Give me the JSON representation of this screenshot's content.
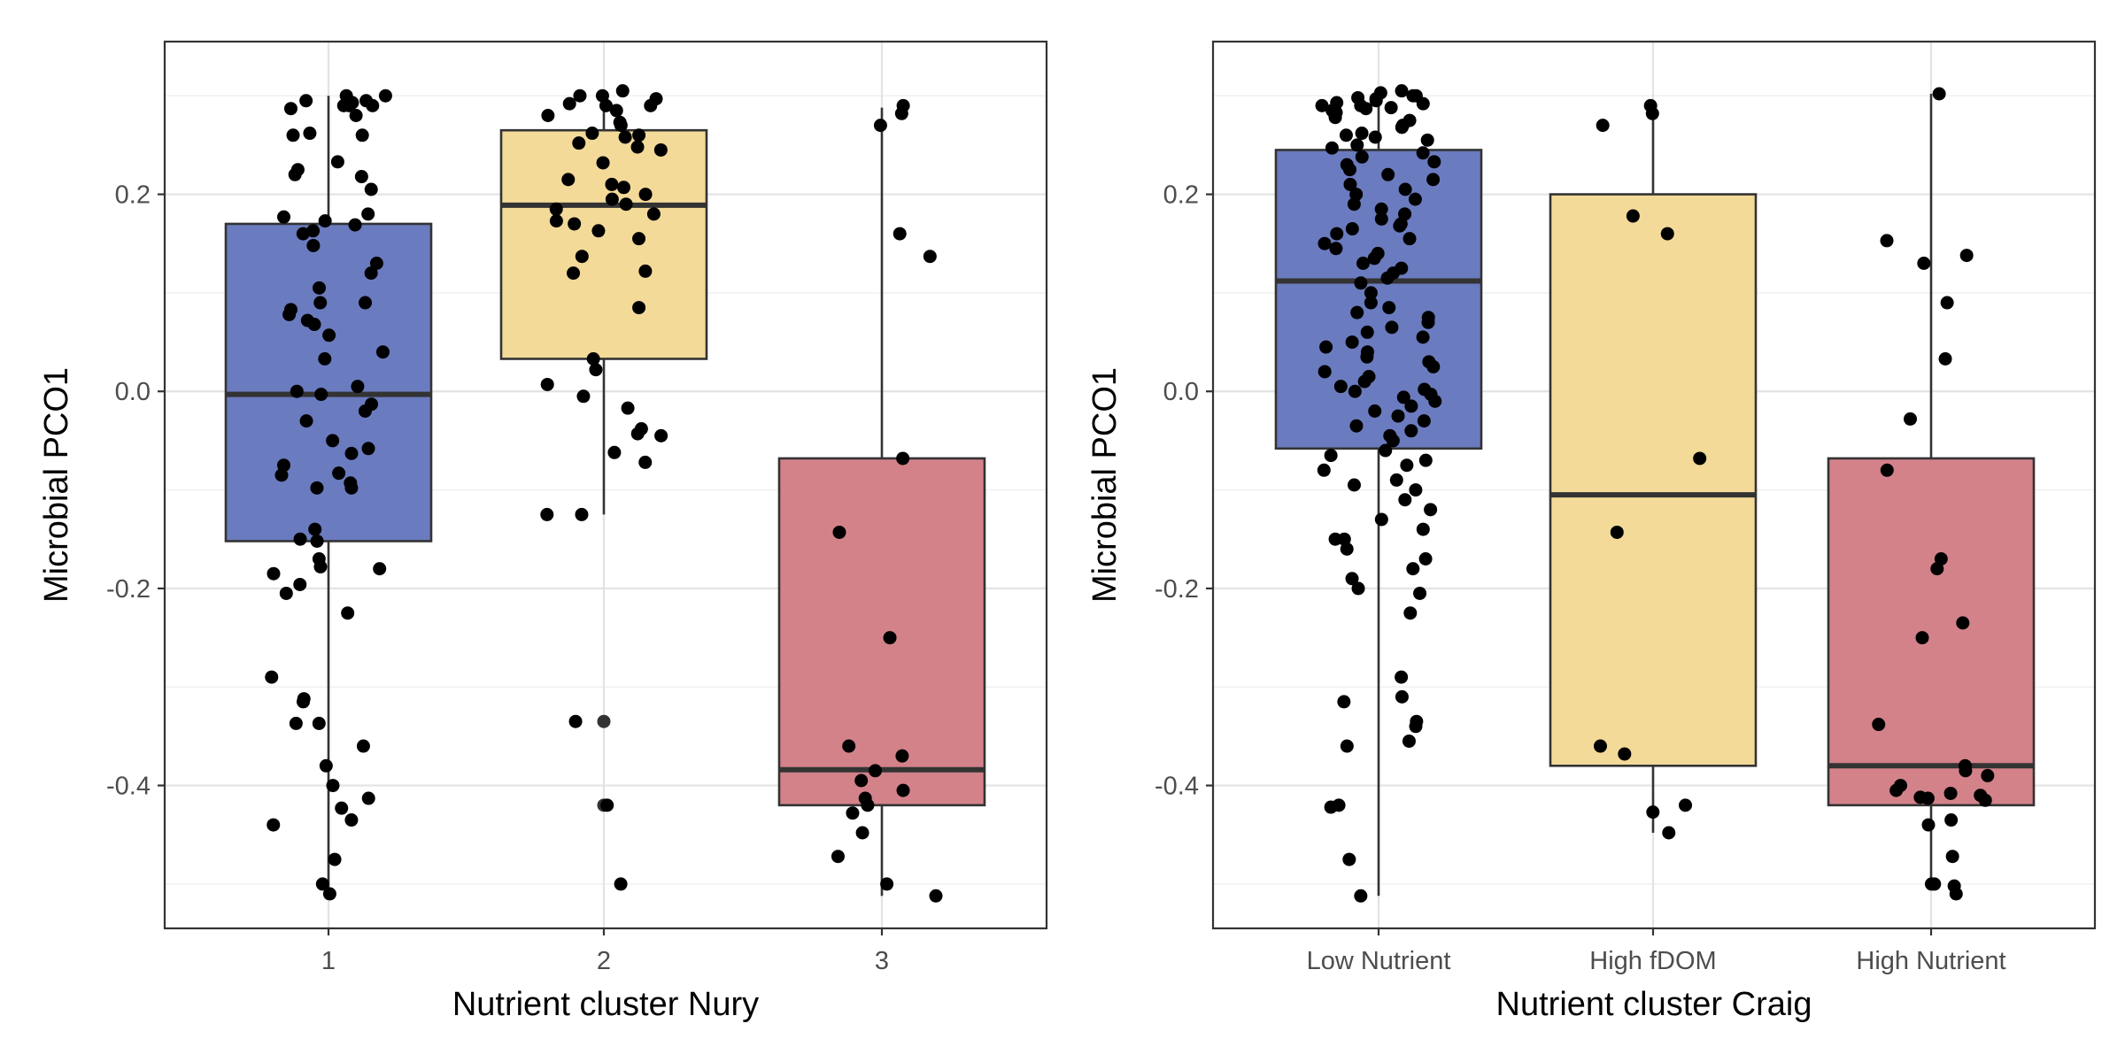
{
  "chart_data": [
    {
      "type": "boxplot",
      "xlabel": "Nutrient cluster Nury",
      "ylabel": "Microbial PCO1",
      "categories": [
        "1",
        "2",
        "3"
      ],
      "colors": [
        "#6B7BBF",
        "#F3DA99",
        "#D3828A"
      ],
      "ylim": [
        -0.545,
        0.355
      ],
      "yticks": [
        "0.2",
        "0.0",
        "-0.2",
        "-0.4"
      ],
      "ytick_values": [
        0.2,
        0.0,
        -0.2,
        -0.4
      ],
      "grid": true,
      "boxes": [
        {
          "category": "1",
          "whisker_low": -0.51,
          "q1": -0.152,
          "median": -0.003,
          "q3": 0.17,
          "whisker_high": 0.3
        },
        {
          "category": "2",
          "whisker_low": -0.125,
          "q1": 0.033,
          "median": 0.189,
          "q3": 0.265,
          "whisker_high": 0.3
        },
        {
          "category": "3",
          "whisker_low": -0.512,
          "q1": -0.42,
          "median": -0.384,
          "q3": -0.068,
          "whisker_high": 0.288
        }
      ],
      "outliers": [
        {
          "category": "2",
          "values": [
            -0.335,
            -0.42
          ]
        }
      ],
      "points": [
        {
          "category": "1",
          "values": [
            0.3,
            0.295,
            0.29,
            0.3,
            0.29,
            0.295,
            0.287,
            0.29,
            0.293,
            0.295,
            0.28,
            0.262,
            0.26,
            0.26,
            0.233,
            0.225,
            0.22,
            0.218,
            0.205,
            0.18,
            0.177,
            0.173,
            0.169,
            0.163,
            0.16,
            0.148,
            0.13,
            0.12,
            0.105,
            0.09,
            0.09,
            0.083,
            0.078,
            0.072,
            0.068,
            0.057,
            0.04,
            0.033,
            0.005,
            0.0,
            -0.003,
            -0.013,
            -0.02,
            -0.03,
            -0.05,
            -0.058,
            -0.063,
            -0.075,
            -0.083,
            -0.085,
            -0.093,
            -0.098,
            -0.098,
            -0.15,
            -0.14,
            -0.152,
            -0.17,
            -0.18,
            -0.178,
            -0.185,
            -0.196,
            -0.205,
            -0.225,
            -0.29,
            -0.312,
            -0.315,
            -0.337,
            -0.337,
            -0.36,
            -0.38,
            -0.4,
            -0.413,
            -0.423,
            -0.435,
            -0.44,
            -0.475,
            -0.5,
            -0.51
          ]
        },
        {
          "category": "2",
          "values": [
            0.305,
            0.3,
            0.3,
            0.297,
            0.292,
            0.29,
            0.29,
            0.285,
            0.28,
            0.273,
            0.27,
            0.262,
            0.26,
            0.258,
            0.252,
            0.248,
            0.245,
            0.232,
            0.215,
            0.21,
            0.207,
            0.2,
            0.195,
            0.19,
            0.185,
            0.18,
            0.173,
            0.17,
            0.163,
            0.155,
            0.137,
            0.122,
            0.12,
            0.085,
            0.033,
            0.022,
            0.007,
            -0.005,
            -0.017,
            -0.038,
            -0.043,
            -0.045,
            -0.062,
            -0.072,
            -0.125,
            -0.125,
            -0.335,
            -0.42,
            -0.5
          ]
        },
        {
          "category": "3",
          "values": [
            0.29,
            0.282,
            0.27,
            0.16,
            0.137,
            -0.068,
            -0.143,
            -0.25,
            -0.36,
            -0.37,
            -0.385,
            -0.395,
            -0.405,
            -0.413,
            -0.42,
            -0.428,
            -0.448,
            -0.472,
            -0.5,
            -0.512
          ]
        }
      ]
    },
    {
      "type": "boxplot",
      "xlabel": "Nutrient cluster Craig",
      "ylabel": "Microbial PCO1",
      "categories": [
        "Low Nutrient",
        "High fDOM",
        "High Nutrient"
      ],
      "colors": [
        "#6B7BBF",
        "#F3DA99",
        "#D3828A"
      ],
      "ylim": [
        -0.545,
        0.355
      ],
      "yticks": [
        "0.2",
        "0.0",
        "-0.2",
        "-0.4"
      ],
      "ytick_values": [
        0.2,
        0.0,
        -0.2,
        -0.4
      ],
      "grid": true,
      "boxes": [
        {
          "category": "Low Nutrient",
          "whisker_low": -0.512,
          "q1": -0.058,
          "median": 0.112,
          "q3": 0.245,
          "whisker_high": 0.305
        },
        {
          "category": "High fDOM",
          "whisker_low": -0.448,
          "q1": -0.38,
          "median": -0.105,
          "q3": 0.2,
          "whisker_high": 0.288
        },
        {
          "category": "High Nutrient",
          "whisker_low": -0.505,
          "q1": -0.42,
          "median": -0.38,
          "q3": -0.068,
          "whisker_high": 0.302
        }
      ],
      "outliers": [],
      "points": [
        {
          "category": "Low Nutrient",
          "values": [
            0.305,
            0.303,
            0.3,
            0.3,
            0.298,
            0.297,
            0.295,
            0.293,
            0.292,
            0.29,
            0.29,
            0.288,
            0.287,
            0.285,
            0.283,
            0.28,
            0.278,
            0.275,
            0.27,
            0.268,
            0.262,
            0.26,
            0.258,
            0.255,
            0.25,
            0.247,
            0.242,
            0.238,
            0.233,
            0.23,
            0.225,
            0.22,
            0.215,
            0.21,
            0.205,
            0.2,
            0.195,
            0.19,
            0.185,
            0.18,
            0.175,
            0.17,
            0.168,
            0.165,
            0.16,
            0.155,
            0.15,
            0.145,
            0.14,
            0.135,
            0.13,
            0.125,
            0.12,
            0.115,
            0.11,
            0.1,
            0.09,
            0.085,
            0.08,
            0.075,
            0.07,
            0.065,
            0.06,
            0.055,
            0.05,
            0.045,
            0.04,
            0.035,
            0.03,
            0.025,
            0.02,
            0.015,
            0.01,
            0.005,
            0.002,
            0.0,
            -0.003,
            -0.006,
            -0.01,
            -0.015,
            -0.02,
            -0.025,
            -0.03,
            -0.035,
            -0.04,
            -0.045,
            -0.05,
            -0.06,
            -0.065,
            -0.07,
            -0.075,
            -0.08,
            -0.09,
            -0.095,
            -0.1,
            -0.11,
            -0.12,
            -0.13,
            -0.14,
            -0.15,
            -0.15,
            -0.16,
            -0.17,
            -0.18,
            -0.19,
            -0.2,
            -0.205,
            -0.225,
            -0.29,
            -0.31,
            -0.315,
            -0.335,
            -0.34,
            -0.355,
            -0.36,
            -0.42,
            -0.422,
            -0.475,
            -0.512
          ]
        },
        {
          "category": "High fDOM",
          "values": [
            0.29,
            0.282,
            0.27,
            0.178,
            0.16,
            -0.068,
            -0.143,
            -0.36,
            -0.368,
            -0.42,
            -0.427,
            -0.448
          ]
        },
        {
          "category": "High Nutrient",
          "values": [
            0.302,
            0.153,
            0.138,
            0.13,
            0.09,
            0.033,
            -0.028,
            -0.08,
            -0.17,
            -0.18,
            -0.235,
            -0.25,
            -0.338,
            -0.39,
            -0.38,
            -0.385,
            -0.4,
            -0.405,
            -0.408,
            -0.41,
            -0.412,
            -0.413,
            -0.415,
            -0.435,
            -0.44,
            -0.472,
            -0.5,
            -0.5,
            -0.502,
            -0.51
          ]
        }
      ]
    }
  ]
}
